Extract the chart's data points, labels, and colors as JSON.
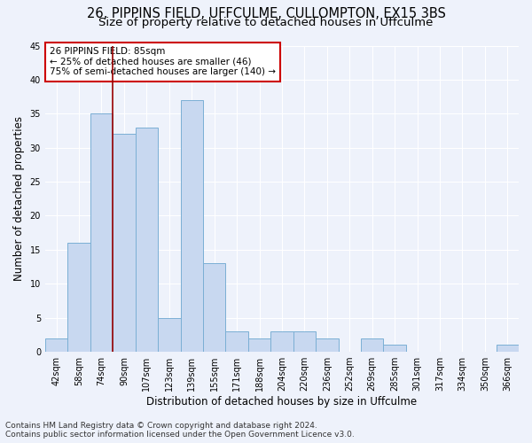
{
  "title1": "26, PIPPINS FIELD, UFFCULME, CULLOMPTON, EX15 3BS",
  "title2": "Size of property relative to detached houses in Uffculme",
  "xlabel": "Distribution of detached houses by size in Uffculme",
  "ylabel": "Number of detached properties",
  "categories": [
    "42sqm",
    "58sqm",
    "74sqm",
    "90sqm",
    "107sqm",
    "123sqm",
    "139sqm",
    "155sqm",
    "171sqm",
    "188sqm",
    "204sqm",
    "220sqm",
    "236sqm",
    "252sqm",
    "269sqm",
    "285sqm",
    "301sqm",
    "317sqm",
    "334sqm",
    "350sqm",
    "366sqm"
  ],
  "values": [
    2,
    16,
    35,
    32,
    33,
    5,
    37,
    13,
    3,
    2,
    3,
    3,
    2,
    0,
    2,
    1,
    0,
    0,
    0,
    0,
    1
  ],
  "bar_color": "#c8d8f0",
  "bar_edge_color": "#7bafd4",
  "vline_pos": 2.5,
  "vline_color": "#990000",
  "annotation_text": "26 PIPPINS FIELD: 85sqm\n← 25% of detached houses are smaller (46)\n75% of semi-detached houses are larger (140) →",
  "annotation_box_color": "#ffffff",
  "annotation_box_edge": "#cc0000",
  "ylim": [
    0,
    45
  ],
  "yticks": [
    0,
    5,
    10,
    15,
    20,
    25,
    30,
    35,
    40,
    45
  ],
  "footnote": "Contains HM Land Registry data © Crown copyright and database right 2024.\nContains public sector information licensed under the Open Government Licence v3.0.",
  "bg_color": "#eef2fb",
  "grid_color": "#ffffff",
  "title_fontsize": 10.5,
  "subtitle_fontsize": 9.5,
  "axis_label_fontsize": 8.5,
  "tick_fontsize": 7,
  "annotation_fontsize": 7.5,
  "footnote_fontsize": 6.5
}
